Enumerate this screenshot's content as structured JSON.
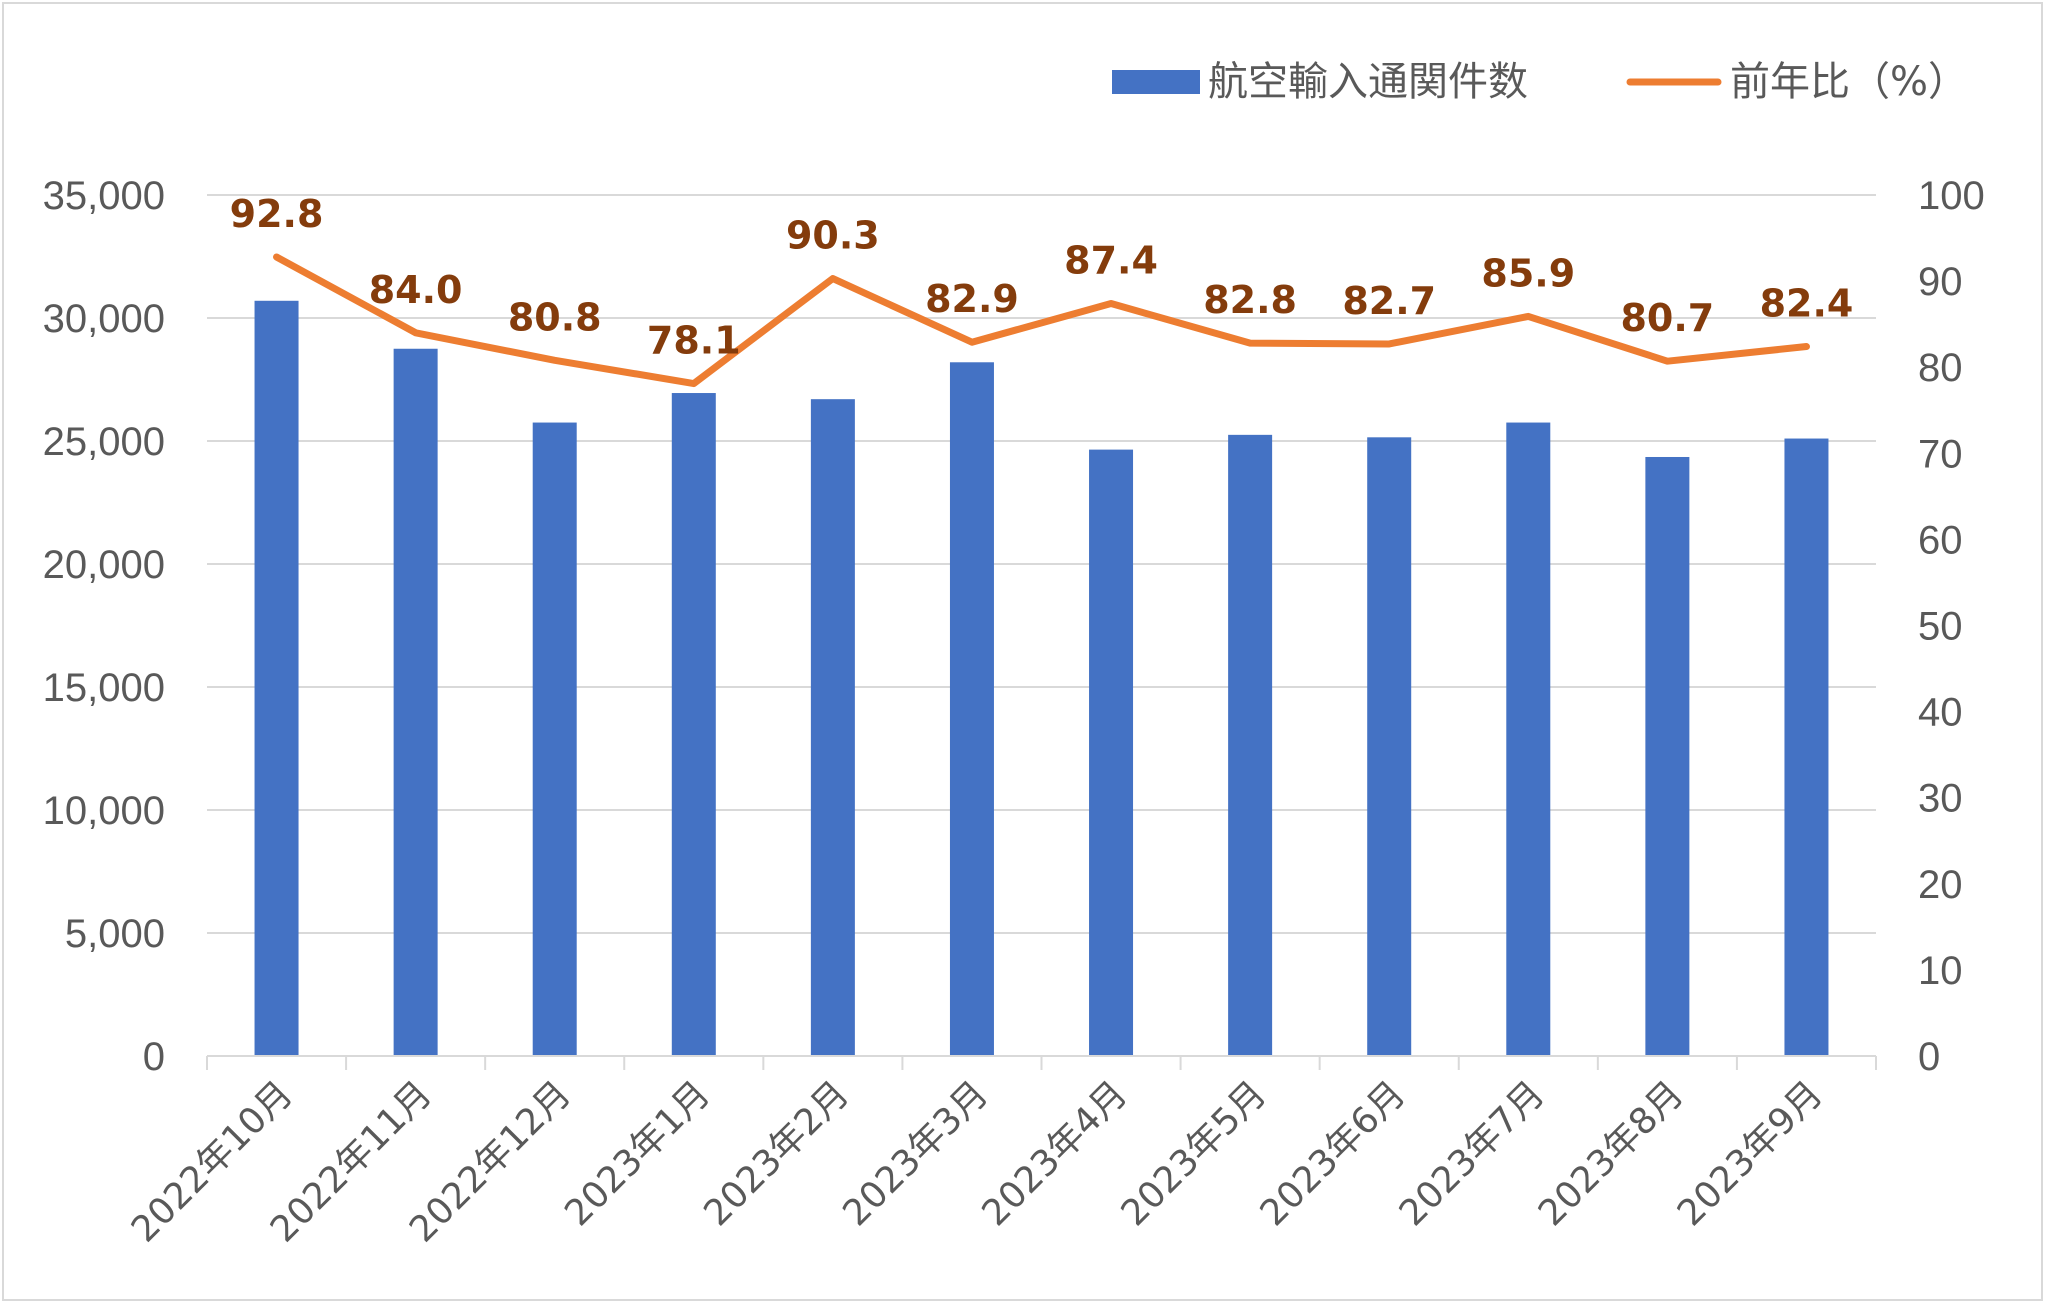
{
  "chart_data": {
    "type": "bar",
    "categories": [
      "2022年10月",
      "2022年11月",
      "2022年12月",
      "2023年1月",
      "2023年2月",
      "2023年3月",
      "2023年4月",
      "2023年5月",
      "2023年6月",
      "2023年7月",
      "2023年8月",
      "2023年9月"
    ],
    "series": [
      {
        "name": "航空輸入通関件数",
        "type": "bar",
        "axis": "left",
        "color": "#4472c4",
        "values": [
          30700,
          28750,
          25750,
          26950,
          26700,
          28200,
          24650,
          25250,
          25150,
          25750,
          24350,
          25100
        ]
      },
      {
        "name": "前年比（%）",
        "type": "line",
        "axis": "right",
        "color": "#ed7d31",
        "values": [
          92.8,
          84.0,
          80.8,
          78.1,
          90.3,
          82.9,
          87.4,
          82.8,
          82.7,
          85.9,
          80.7,
          82.4
        ],
        "data_labels": [
          "92.8",
          "84.0",
          "80.8",
          "78.1",
          "90.3",
          "82.9",
          "87.4",
          "82.8",
          "82.7",
          "85.9",
          "80.7",
          "82.4"
        ]
      }
    ],
    "left_axis": {
      "ylim": [
        0,
        35000
      ],
      "ticks": [
        "0",
        "5,000",
        "10,000",
        "15,000",
        "20,000",
        "25,000",
        "30,000",
        "35,000"
      ]
    },
    "right_axis": {
      "ylim": [
        0,
        100
      ],
      "ticks": [
        "0",
        "10",
        "20",
        "30",
        "40",
        "50",
        "60",
        "70",
        "80",
        "90",
        "100"
      ]
    },
    "grid": true,
    "legend_position": "top-right"
  }
}
